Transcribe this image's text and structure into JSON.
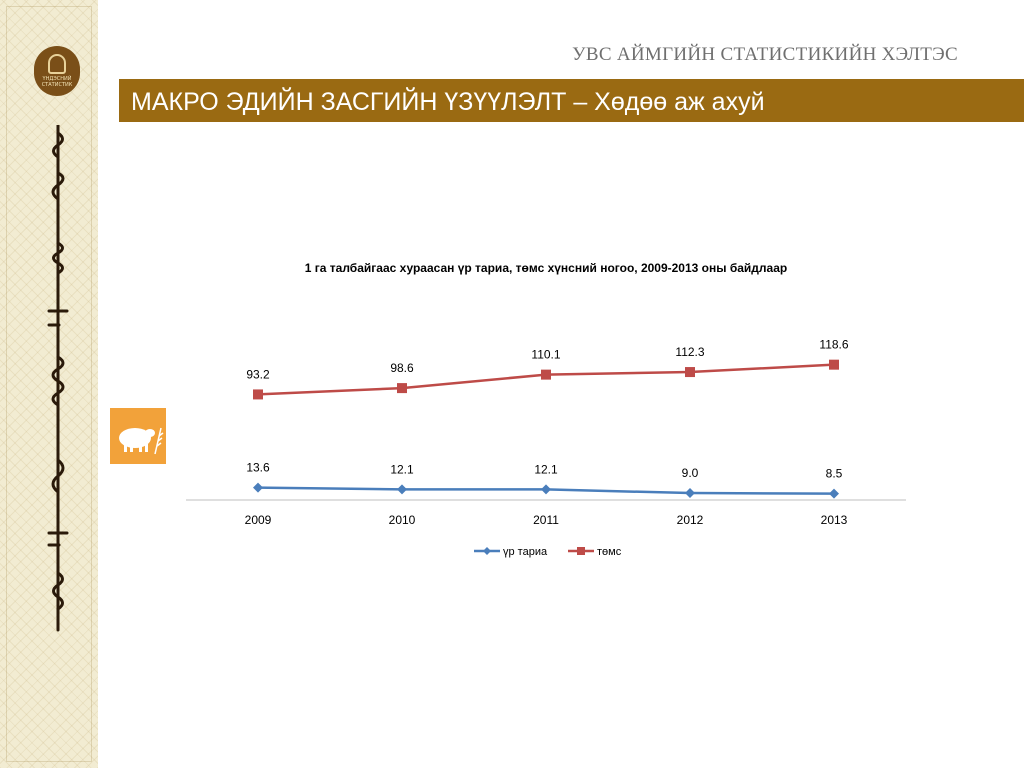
{
  "header": {
    "org_title": "УВС АЙМГИЙН СТАТИСТИКИЙН ХЭЛТЭС",
    "banner_title": "МАКРО ЭДИЙН ЗАСГИЙН ҮЗҮҮЛЭЛТ – Хөдөө аж ахуй"
  },
  "sidebar": {
    "logo_text_line1": "ҮНДЭСНИЙ",
    "logo_text_line2": "СТАТИСТИК",
    "bg_color": "#f2ecd2"
  },
  "section_icon": {
    "name": "sheep-wheat-icon",
    "color": "#f2a23a"
  },
  "colors": {
    "banner": "#9a6a12",
    "series_1": "#4a7ebb",
    "series_2": "#be4b48"
  },
  "chart_data": {
    "type": "line",
    "title": "1 га талбайгаас хураасан үр тариа, төмс хүнсний ногоо, 2009-2013 оны байдлаар",
    "categories": [
      "2009",
      "2010",
      "2011",
      "2012",
      "2013"
    ],
    "series": [
      {
        "name": "үр тариа",
        "values": [
          13.6,
          12.1,
          12.1,
          9.0,
          8.5
        ],
        "labels": [
          "13.6",
          "12.1",
          "12.1",
          "9.0",
          "8.5"
        ],
        "marker": "diamond",
        "color": "#4a7ebb"
      },
      {
        "name": "төмс",
        "values": [
          93.2,
          98.6,
          110.1,
          112.3,
          118.6
        ],
        "labels": [
          "93.2",
          "98.6",
          "110.1",
          "112.3",
          "118.6"
        ],
        "marker": "square",
        "color": "#be4b48"
      }
    ],
    "ylim": [
      0,
      130
    ],
    "y_axis_visible": false,
    "grid": false,
    "legend": "bottom",
    "xlabel": "",
    "ylabel": ""
  }
}
